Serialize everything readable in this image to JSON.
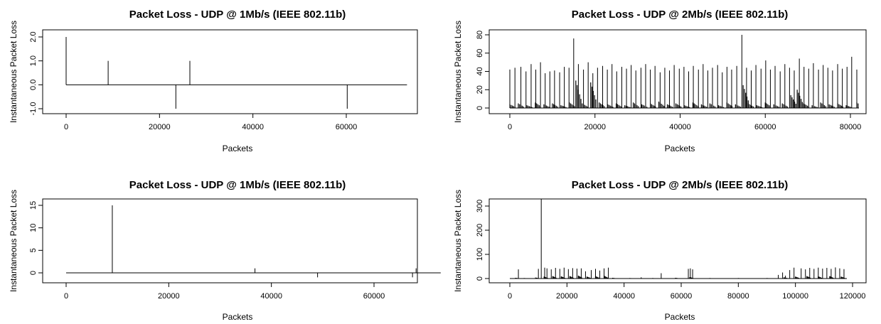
{
  "chart_data": [
    {
      "type": "line",
      "title": "Packet Loss - UDP @ 1Mb/s (IEEE 802.11b)",
      "xlabel": "Packets",
      "ylabel": "Instantaneous Packet Loss",
      "xlim": [
        0,
        73000
      ],
      "ylim": [
        -1,
        2
      ],
      "xticks": [
        0,
        20000,
        40000,
        60000
      ],
      "yticks": [
        "-1.0",
        "0.0",
        "1.0",
        "2.0"
      ],
      "grid": false,
      "baseline": 0,
      "spikes": [
        [
          0,
          2
        ],
        [
          9000,
          1
        ],
        [
          23500,
          -1
        ],
        [
          26500,
          1
        ],
        [
          60200,
          -1
        ]
      ],
      "baseline_end": 73000
    },
    {
      "type": "line",
      "title": "Packet Loss - UDP @ 2Mb/s (IEEE 802.11b)",
      "xlabel": "Packets",
      "ylabel": "Instantaneous Packet Loss",
      "xlim": [
        0,
        82000
      ],
      "ylim": [
        0,
        80
      ],
      "xticks": [
        0,
        20000,
        40000,
        60000,
        80000
      ],
      "yticks": [
        "0",
        "20",
        "40",
        "60",
        "80"
      ],
      "grid": false,
      "baseline": 0,
      "spikes": [
        [
          0,
          42
        ],
        [
          1200,
          44
        ],
        [
          2600,
          45
        ],
        [
          3800,
          40
        ],
        [
          5000,
          48
        ],
        [
          6100,
          42
        ],
        [
          7200,
          50
        ],
        [
          8300,
          38
        ],
        [
          9400,
          40
        ],
        [
          10500,
          41
        ],
        [
          11700,
          39
        ],
        [
          12800,
          45
        ],
        [
          13900,
          44
        ],
        [
          15000,
          76
        ],
        [
          16100,
          48
        ],
        [
          17300,
          42
        ],
        [
          18400,
          50
        ],
        [
          19500,
          38
        ],
        [
          20600,
          44
        ],
        [
          21800,
          46
        ],
        [
          22900,
          42
        ],
        [
          24000,
          48
        ],
        [
          25100,
          40
        ],
        [
          26300,
          45
        ],
        [
          27400,
          43
        ],
        [
          28500,
          47
        ],
        [
          29600,
          41
        ],
        [
          30800,
          44
        ],
        [
          31900,
          48
        ],
        [
          33000,
          42
        ],
        [
          34100,
          46
        ],
        [
          35300,
          39
        ],
        [
          36400,
          44
        ],
        [
          37500,
          41
        ],
        [
          38600,
          47
        ],
        [
          39800,
          43
        ],
        [
          40900,
          45
        ],
        [
          42000,
          40
        ],
        [
          43100,
          46
        ],
        [
          44300,
          42
        ],
        [
          45400,
          48
        ],
        [
          46500,
          41
        ],
        [
          47600,
          44
        ],
        [
          48800,
          47
        ],
        [
          49900,
          39
        ],
        [
          51000,
          45
        ],
        [
          52100,
          42
        ],
        [
          53300,
          46
        ],
        [
          54500,
          80
        ],
        [
          55600,
          44
        ],
        [
          56700,
          41
        ],
        [
          57800,
          47
        ],
        [
          59000,
          43
        ],
        [
          60100,
          52
        ],
        [
          61200,
          42
        ],
        [
          62300,
          46
        ],
        [
          63500,
          40
        ],
        [
          64600,
          48
        ],
        [
          65700,
          44
        ],
        [
          66800,
          41
        ],
        [
          68000,
          54
        ],
        [
          69100,
          45
        ],
        [
          70200,
          43
        ],
        [
          71300,
          49
        ],
        [
          72500,
          42
        ],
        [
          73600,
          47
        ],
        [
          74700,
          44
        ],
        [
          75800,
          41
        ],
        [
          77000,
          48
        ],
        [
          78100,
          43
        ],
        [
          79200,
          45
        ],
        [
          80300,
          56
        ],
        [
          81500,
          42
        ]
      ],
      "noise": [
        [
          0,
          4
        ],
        [
          2000,
          5
        ],
        [
          4000,
          3
        ],
        [
          6000,
          6
        ],
        [
          8000,
          4
        ],
        [
          10000,
          5
        ],
        [
          12000,
          3
        ],
        [
          14000,
          6
        ],
        [
          15500,
          30
        ],
        [
          17000,
          5
        ],
        [
          19000,
          28
        ],
        [
          21000,
          6
        ],
        [
          23000,
          4
        ],
        [
          25000,
          5
        ],
        [
          27000,
          3
        ],
        [
          29000,
          6
        ],
        [
          31000,
          4
        ],
        [
          33000,
          5
        ],
        [
          35000,
          7
        ],
        [
          37000,
          4
        ],
        [
          39000,
          5
        ],
        [
          41000,
          3
        ],
        [
          43000,
          6
        ],
        [
          45000,
          4
        ],
        [
          47000,
          5
        ],
        [
          49000,
          3
        ],
        [
          51000,
          6
        ],
        [
          53000,
          4
        ],
        [
          54800,
          25
        ],
        [
          56000,
          5
        ],
        [
          58000,
          3
        ],
        [
          60000,
          6
        ],
        [
          62000,
          4
        ],
        [
          64000,
          5
        ],
        [
          66000,
          14
        ],
        [
          67500,
          20
        ],
        [
          69000,
          5
        ],
        [
          71000,
          3
        ],
        [
          73000,
          6
        ],
        [
          75000,
          4
        ],
        [
          77000,
          5
        ],
        [
          79000,
          3
        ],
        [
          81500,
          6
        ]
      ],
      "baseline_end": 82000
    },
    {
      "type": "line",
      "title": "Packet Loss - UDP @ 1Mb/s (IEEE 802.11b)",
      "xlabel": "Packets",
      "ylabel": "Instantaneous Packet Loss",
      "xlim": [
        0,
        73000
      ],
      "ylim": [
        -1,
        16
      ],
      "xticks": [
        0,
        20000,
        40000,
        60000
      ],
      "yticks": [
        "0",
        "5",
        "10",
        "15"
      ],
      "grid": false,
      "baseline": 0,
      "spikes": [
        [
          9000,
          15
        ],
        [
          36800,
          1
        ],
        [
          49000,
          -1
        ],
        [
          67500,
          -1
        ],
        [
          68200,
          1
        ]
      ],
      "baseline_end": 73000
    },
    {
      "type": "line",
      "title": "Packet Loss - UDP @ 2Mb/s (IEEE 802.11b)",
      "xlabel": "Packets",
      "ylabel": "Instantaneous Packet Loss",
      "xlim": [
        0,
        120000
      ],
      "ylim": [
        0,
        330
      ],
      "xticks": [
        0,
        20000,
        40000,
        60000,
        80000,
        100000,
        120000
      ],
      "yticks": [
        "0",
        "100",
        "200",
        "300"
      ],
      "grid": false,
      "baseline": 0,
      "spikes": [
        [
          3000,
          38
        ],
        [
          10000,
          40
        ],
        [
          11000,
          330
        ],
        [
          12200,
          45
        ],
        [
          13000,
          42
        ],
        [
          14500,
          38
        ],
        [
          16000,
          44
        ],
        [
          17500,
          40
        ],
        [
          19000,
          45
        ],
        [
          20500,
          39
        ],
        [
          22000,
          43
        ],
        [
          23500,
          41
        ],
        [
          25000,
          42
        ],
        [
          26500,
          30
        ],
        [
          28500,
          35
        ],
        [
          30000,
          40
        ],
        [
          31500,
          33
        ],
        [
          33000,
          42
        ],
        [
          34500,
          45
        ],
        [
          46000,
          5
        ],
        [
          53000,
          22
        ],
        [
          62500,
          40
        ],
        [
          63200,
          42
        ],
        [
          64000,
          38
        ],
        [
          94000,
          15
        ],
        [
          95500,
          25
        ],
        [
          96500,
          12
        ],
        [
          98000,
          35
        ],
        [
          99500,
          45
        ],
        [
          102000,
          42
        ],
        [
          103500,
          38
        ],
        [
          105000,
          44
        ],
        [
          106500,
          40
        ],
        [
          108000,
          45
        ],
        [
          109500,
          41
        ],
        [
          111000,
          44
        ],
        [
          112500,
          40
        ],
        [
          114000,
          46
        ],
        [
          115500,
          42
        ],
        [
          117000,
          39
        ]
      ],
      "noise": [
        [
          2000,
          3
        ],
        [
          5000,
          2
        ],
        [
          9000,
          4
        ],
        [
          12000,
          8
        ],
        [
          15000,
          10
        ],
        [
          18000,
          9
        ],
        [
          21000,
          10
        ],
        [
          24000,
          12
        ],
        [
          27000,
          8
        ],
        [
          30000,
          10
        ],
        [
          33000,
          12
        ],
        [
          36000,
          3
        ],
        [
          42000,
          2
        ],
        [
          50000,
          2
        ],
        [
          58000,
          3
        ],
        [
          63000,
          6
        ],
        [
          70000,
          2
        ],
        [
          80000,
          2
        ],
        [
          90000,
          2
        ],
        [
          96000,
          5
        ],
        [
          100000,
          8
        ],
        [
          104000,
          10
        ],
        [
          108000,
          9
        ],
        [
          112000,
          10
        ],
        [
          116000,
          8
        ]
      ],
      "baseline_end": 118000
    }
  ]
}
